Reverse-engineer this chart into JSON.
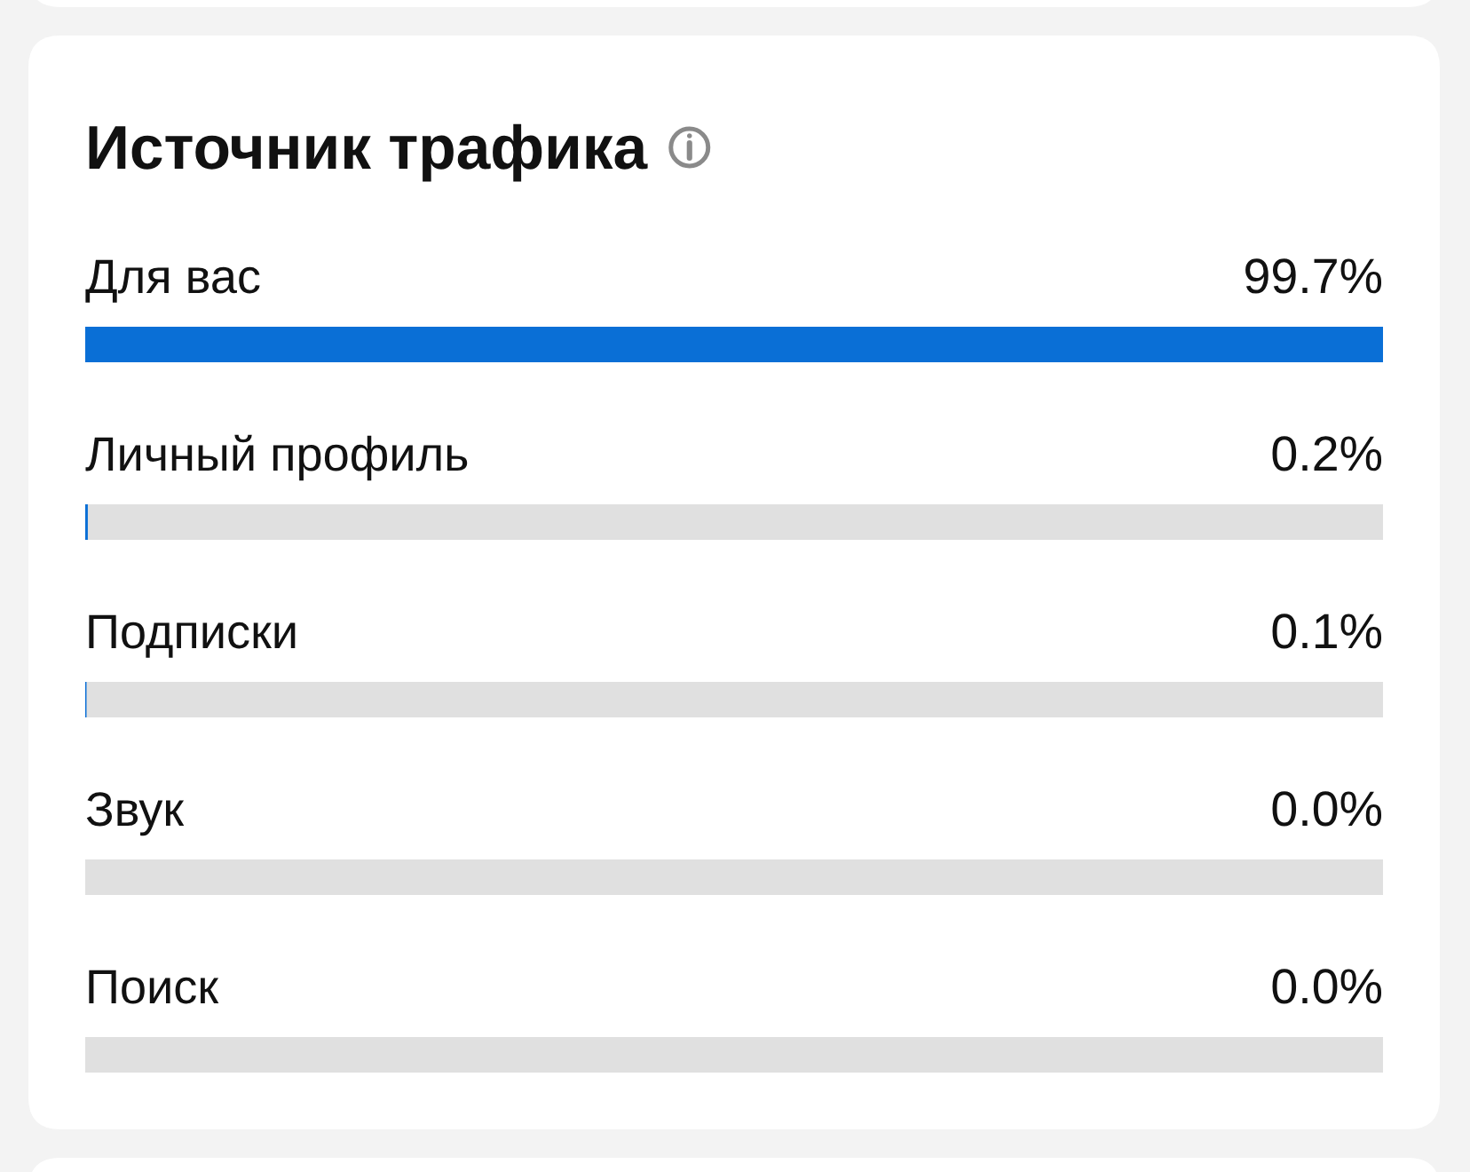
{
  "chart_data": {
    "type": "bar",
    "orientation": "horizontal",
    "title": "Источник трафика",
    "categories": [
      "Для вас",
      "Личный профиль",
      "Подписки",
      "Звук",
      "Поиск"
    ],
    "series": [
      {
        "color": "#0a6fd6",
        "values": [
          99.7,
          0.2,
          0.1,
          0.0,
          0.0
        ],
        "value_labels": [
          "99.7%",
          "0.2%",
          "0.1%",
          "0.0%",
          "0.0%"
        ]
      }
    ],
    "bands": [
      {
        "axis": "y",
        "from": "Личный профиль",
        "to": "Личный профиль",
        "color": "#e0e0e0"
      },
      {
        "axis": "y",
        "from": "Подписки",
        "to": "Подписки",
        "color": "#e0e0e0"
      },
      {
        "axis": "y",
        "from": "Звук",
        "to": "Звук",
        "color": "#e0e0e0"
      },
      {
        "axis": "y",
        "from": "Поиск",
        "to": "Поиск",
        "color": "#e0e0e0"
      }
    ],
    "tick_labels": "y"
  }
}
